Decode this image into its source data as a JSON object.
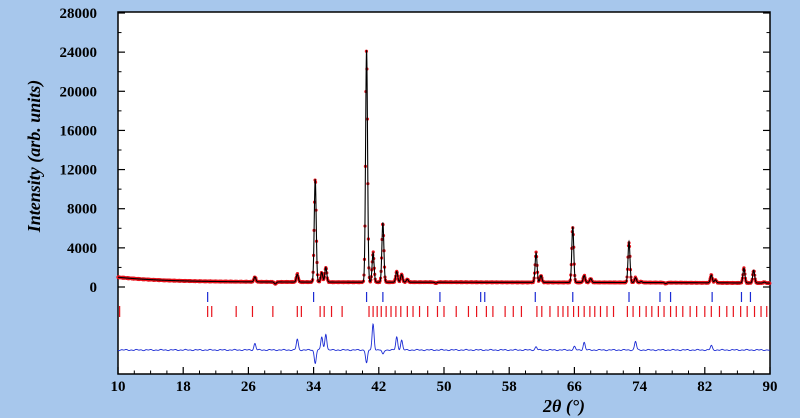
{
  "chart_data": {
    "type": "line",
    "title": "",
    "xlabel": "2θ (°)",
    "ylabel": "Intensity (arb. units)",
    "xlim": [
      10,
      90
    ],
    "ylim": [
      0,
      28000
    ],
    "x_ticks": [
      10,
      18,
      26,
      34,
      42,
      50,
      58,
      66,
      74,
      82,
      90
    ],
    "y_ticks": [
      0,
      4000,
      8000,
      12000,
      16000,
      20000,
      24000,
      28000
    ],
    "colors": {
      "observed": "#e8121b",
      "calculated": "#000000",
      "difference": "#1b2bd4",
      "bragg_phase_1": "#1b2bd4",
      "bragg_phase_2": "#e8121b",
      "background": "#a7c7ec",
      "plot_area": "#ffffff"
    },
    "baseline_intensity": 500,
    "peaks": [
      {
        "x": 26.8,
        "y": 1000
      },
      {
        "x": 29.3,
        "y": 300
      },
      {
        "x": 32.0,
        "y": 1300
      },
      {
        "x": 34.2,
        "y": 11000
      },
      {
        "x": 35.0,
        "y": 1500
      },
      {
        "x": 35.5,
        "y": 2000
      },
      {
        "x": 40.5,
        "y": 24200
      },
      {
        "x": 41.3,
        "y": 3500
      },
      {
        "x": 42.5,
        "y": 6600
      },
      {
        "x": 44.2,
        "y": 1600
      },
      {
        "x": 44.8,
        "y": 1300
      },
      {
        "x": 45.5,
        "y": 800
      },
      {
        "x": 49.0,
        "y": 400
      },
      {
        "x": 55.8,
        "y": 500
      },
      {
        "x": 61.3,
        "y": 3500
      },
      {
        "x": 61.9,
        "y": 1200
      },
      {
        "x": 65.8,
        "y": 6200
      },
      {
        "x": 67.2,
        "y": 1200
      },
      {
        "x": 68.0,
        "y": 900
      },
      {
        "x": 72.7,
        "y": 4700
      },
      {
        "x": 73.5,
        "y": 1000
      },
      {
        "x": 74.2,
        "y": 600
      },
      {
        "x": 77.2,
        "y": 400
      },
      {
        "x": 82.8,
        "y": 1300
      },
      {
        "x": 83.3,
        "y": 800
      },
      {
        "x": 86.8,
        "y": 2000
      },
      {
        "x": 88.0,
        "y": 1800
      },
      {
        "x": 89.3,
        "y": 600
      }
    ],
    "bragg_phase_1": [
      21.0,
      34.0,
      40.5,
      42.5,
      49.5,
      54.5,
      55.0,
      61.2,
      65.8,
      72.7,
      76.5,
      77.8,
      82.9,
      86.5,
      87.6
    ],
    "bragg_phase_2": [
      10.2,
      21.0,
      21.5,
      24.5,
      26.5,
      29.0,
      32.0,
      32.5,
      34.8,
      35.3,
      36.2,
      37.5,
      40.8,
      41.3,
      41.8,
      42.3,
      42.9,
      43.5,
      44.1,
      44.7,
      45.5,
      46.2,
      47.0,
      48.0,
      49.2,
      50.0,
      51.5,
      53.0,
      54.0,
      55.2,
      56.0,
      57.5,
      58.5,
      59.5,
      61.4,
      62.0,
      63.0,
      64.0,
      64.6,
      65.2,
      65.9,
      66.5,
      67.2,
      67.9,
      68.5,
      69.2,
      70.0,
      70.8,
      72.5,
      73.2,
      74.0,
      74.8,
      75.5,
      76.3,
      77.0,
      77.8,
      78.5,
      79.3,
      80.2,
      81.0,
      82.0,
      82.8,
      83.8,
      84.7,
      85.5,
      86.4,
      87.2,
      88.1,
      88.9,
      89.6
    ],
    "difference_features": [
      {
        "x": 26.8,
        "y": 600
      },
      {
        "x": 32.0,
        "y": 1000
      },
      {
        "x": 34.2,
        "y": -1200
      },
      {
        "x": 35.0,
        "y": 1200
      },
      {
        "x": 35.5,
        "y": 1500
      },
      {
        "x": 40.5,
        "y": -1200
      },
      {
        "x": 41.3,
        "y": 2400
      },
      {
        "x": 42.5,
        "y": -400
      },
      {
        "x": 44.2,
        "y": 1200
      },
      {
        "x": 44.8,
        "y": 900
      },
      {
        "x": 61.3,
        "y": 300
      },
      {
        "x": 66.0,
        "y": 300
      },
      {
        "x": 67.2,
        "y": 700
      },
      {
        "x": 73.5,
        "y": 800
      },
      {
        "x": 82.8,
        "y": 400
      }
    ]
  }
}
